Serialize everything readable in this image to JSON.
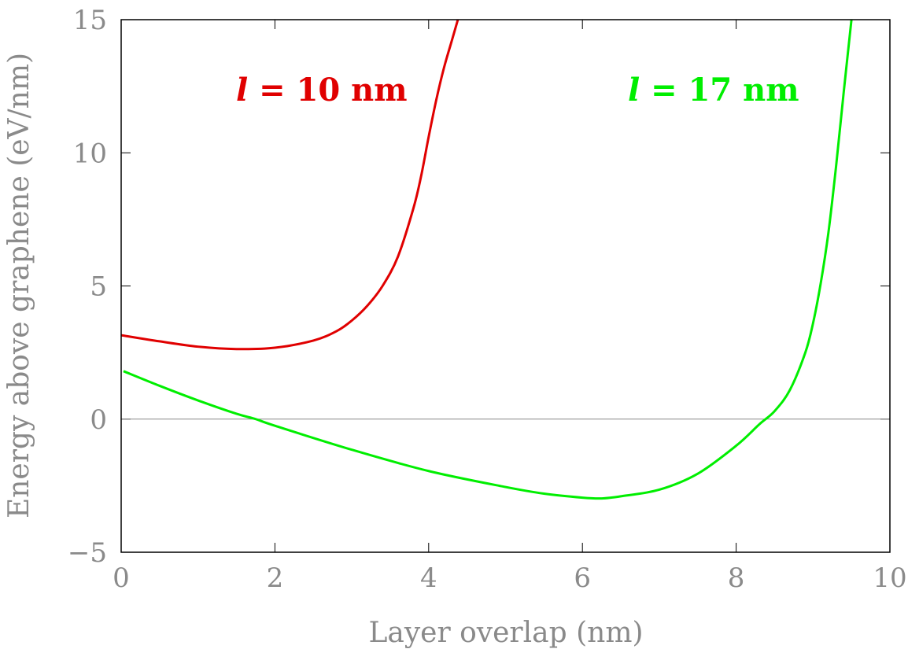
{
  "chart_data": {
    "type": "line",
    "title": "",
    "xlabel": "Layer overlap (nm)",
    "ylabel": "Energy above graphene (eV/nm)",
    "xlim": [
      0,
      10
    ],
    "ylim": [
      -5,
      15
    ],
    "x_ticks": [
      0,
      2,
      4,
      6,
      8,
      10
    ],
    "y_ticks": [
      -5,
      0,
      5,
      10,
      15
    ],
    "x_tick_labels": [
      "0",
      "2",
      "4",
      "6",
      "8",
      "10"
    ],
    "y_tick_labels": [
      "−5",
      "0",
      "5",
      "10",
      "15"
    ],
    "zero_line": true,
    "grid": false,
    "legend": "none",
    "series": [
      {
        "name": "l = 10 nm",
        "label_var": "l",
        "label_rest": " = 10 nm",
        "color": "#e00000",
        "x": [
          0.0,
          0.5,
          1.0,
          1.5,
          2.0,
          2.5,
          2.8,
          3.0,
          3.2,
          3.4,
          3.6,
          3.8,
          3.9,
          4.0,
          4.1,
          4.2,
          4.3,
          4.38
        ],
        "y": [
          3.15,
          2.92,
          2.72,
          2.63,
          2.68,
          2.95,
          3.3,
          3.7,
          4.25,
          5.0,
          6.1,
          7.9,
          9.1,
          10.6,
          12.0,
          13.2,
          14.2,
          15.0
        ]
      },
      {
        "name": "l = 17 nm",
        "label_var": "l",
        "label_rest": " = 17 nm",
        "color": "#00ee00",
        "x": [
          0.03,
          0.5,
          1.0,
          1.5,
          1.75,
          2.0,
          3.0,
          4.0,
          5.0,
          5.5,
          6.0,
          6.25,
          6.5,
          7.0,
          7.5,
          8.0,
          8.3,
          8.5,
          8.7,
          8.9,
          9.0,
          9.1,
          9.2,
          9.3,
          9.4,
          9.5
        ],
        "y": [
          1.8,
          1.25,
          0.7,
          0.2,
          0.0,
          -0.25,
          -1.15,
          -1.95,
          -2.55,
          -2.8,
          -2.95,
          -2.98,
          -2.9,
          -2.65,
          -2.05,
          -1.0,
          -0.2,
          0.3,
          1.1,
          2.5,
          3.6,
          5.1,
          7.0,
          9.5,
          12.3,
          15.0
        ]
      }
    ]
  }
}
